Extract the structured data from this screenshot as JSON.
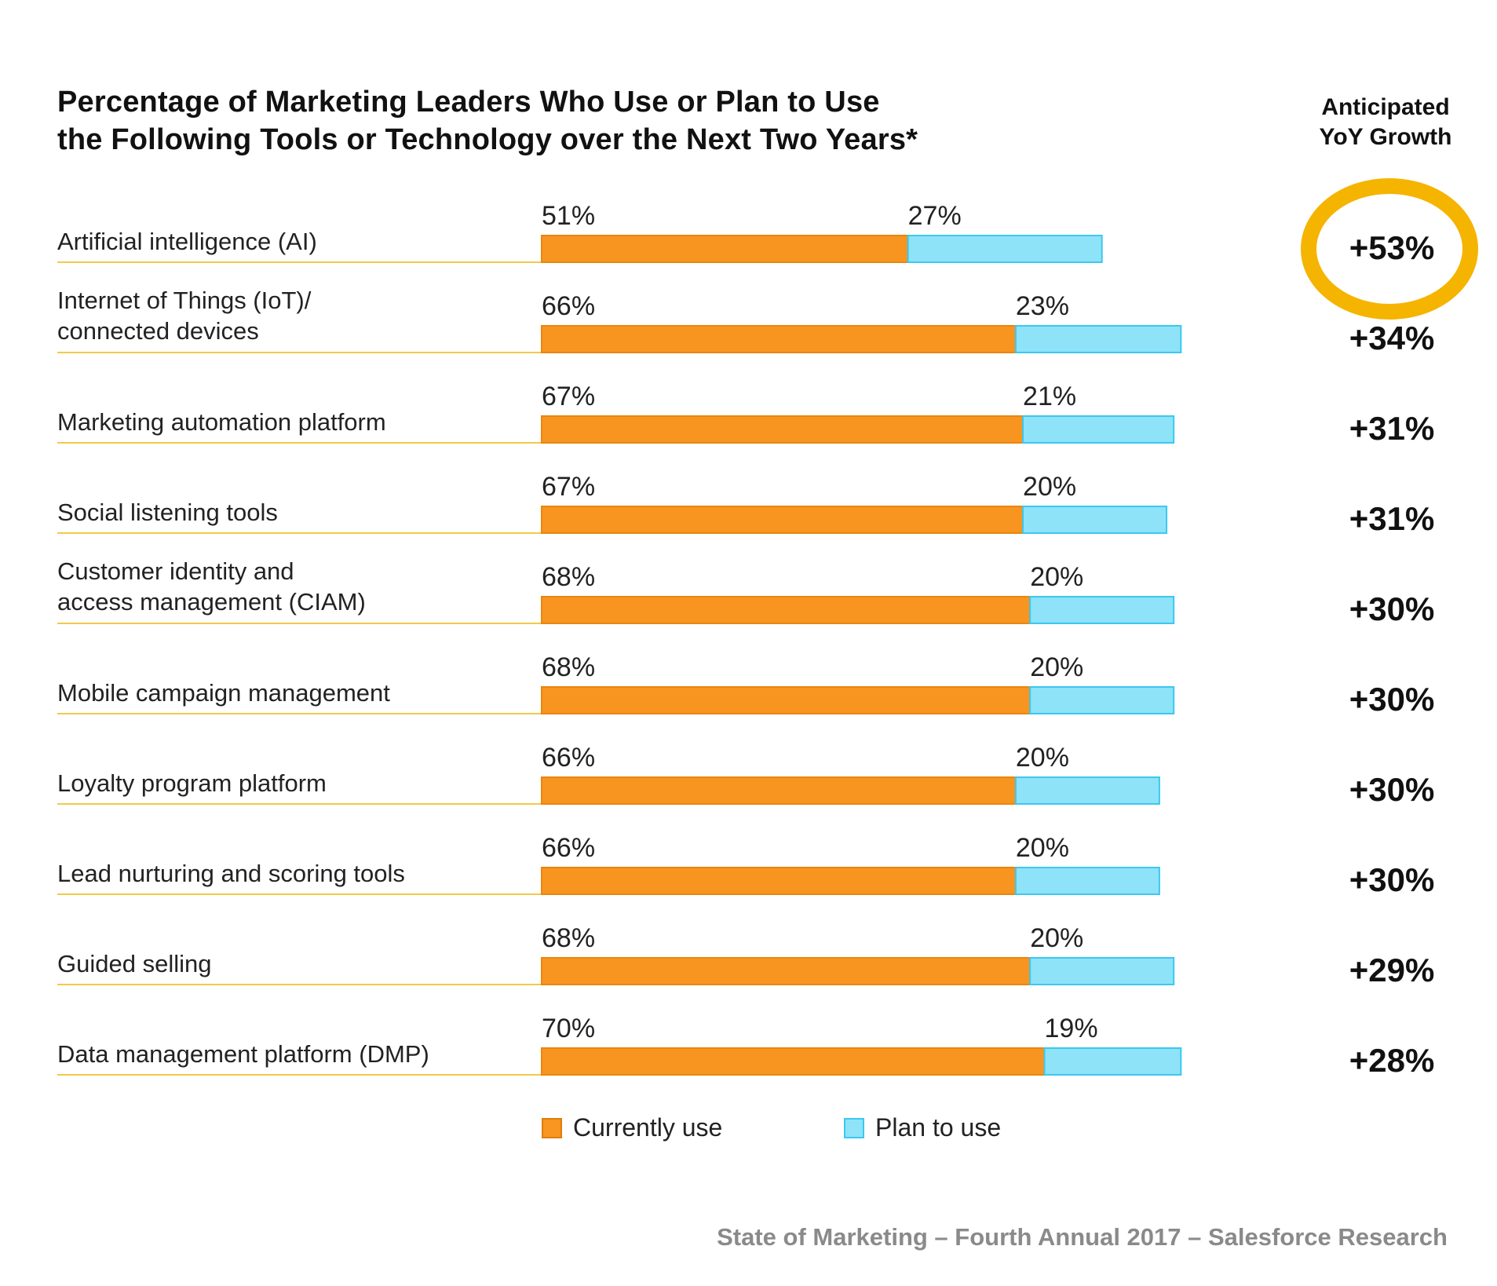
{
  "chart_data": {
    "type": "bar",
    "orientation": "horizontal",
    "stacked": true,
    "title": "Percentage of Marketing Leaders Who Use or Plan to Use the Following Tools or Technology over the Next Two Years*",
    "title_lines": [
      "Percentage of Marketing Leaders Who Use or Plan to Use",
      "the Following Tools or Technology over the Next Two Years*"
    ],
    "categories": [
      [
        "Artificial intelligence (AI)"
      ],
      [
        "Internet of Things (IoT)/",
        "connected devices"
      ],
      [
        "Marketing automation platform"
      ],
      [
        "Social listening tools"
      ],
      [
        "Customer identity and",
        "access management (CIAM)"
      ],
      [
        "Mobile campaign management"
      ],
      [
        "Loyalty program platform"
      ],
      [
        "Lead nurturing and scoring tools"
      ],
      [
        "Guided selling"
      ],
      [
        "Data management platform (DMP)"
      ]
    ],
    "series": [
      {
        "name": "Currently use",
        "color": "#f79520",
        "values": [
          51,
          66,
          67,
          67,
          68,
          68,
          66,
          66,
          68,
          70
        ],
        "labels": [
          "51%",
          "66%",
          "67%",
          "67%",
          "68%",
          "68%",
          "66%",
          "66%",
          "68%",
          "70%"
        ]
      },
      {
        "name": "Plan to use",
        "color": "#8ee3f9",
        "values": [
          27,
          23,
          21,
          20,
          20,
          20,
          20,
          20,
          20,
          19
        ],
        "labels": [
          "27%",
          "23%",
          "21%",
          "20%",
          "20%",
          "20%",
          "20%",
          "20%",
          "20%",
          "19%"
        ]
      }
    ],
    "growth_header": [
      "Anticipated",
      "YoY Growth"
    ],
    "growth": [
      "+53%",
      "+34%",
      "+31%",
      "+31%",
      "+30%",
      "+30%",
      "+30%",
      "+30%",
      "+29%",
      "+28%"
    ],
    "highlight_index": 0,
    "highlight_color": "#f5b400",
    "legend": [
      "Currently use",
      "Plan to use"
    ],
    "legend_placement": "bottom",
    "grid": false,
    "xlim": [
      0,
      100
    ]
  },
  "source": "State of Marketing – Fourth Annual 2017 – Salesforce Research"
}
